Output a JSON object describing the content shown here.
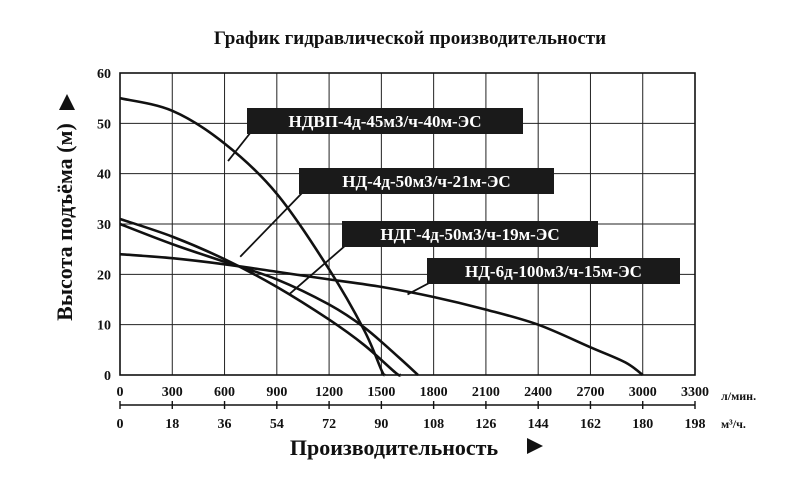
{
  "chart_data": {
    "type": "line",
    "title": "График гидравлической производительности",
    "xlabel": "Производительность",
    "ylabel": "Высота подъёма (м)",
    "x_unit": "л/мин.",
    "x2_unit": "м³/ч.",
    "xlim": [
      0,
      3300
    ],
    "ylim": [
      0,
      60
    ],
    "x_ticks": [
      0,
      300,
      600,
      900,
      1200,
      1500,
      1800,
      2100,
      2400,
      2700,
      3000,
      3300
    ],
    "x2_ticks": [
      0,
      18,
      36,
      54,
      72,
      90,
      108,
      126,
      144,
      162,
      180,
      198
    ],
    "y_ticks": [
      0,
      10,
      20,
      30,
      40,
      50,
      60
    ],
    "grid": true,
    "series": [
      {
        "name": "НДВП-4д-45м3/ч-40м-ЭС",
        "x": [
          0,
          300,
          600,
          900,
          1200,
          1400,
          1500,
          1520
        ],
        "y": [
          55,
          52.5,
          46,
          36,
          21,
          9,
          1,
          0
        ],
        "label_anchor_x": 620,
        "label_anchor_y": 42.5
      },
      {
        "name": "НД-4д-50м3/ч-21м-ЭС",
        "x": [
          0,
          300,
          600,
          900,
          1200,
          1400,
          1580,
          1610
        ],
        "y": [
          31,
          27.5,
          23,
          17.5,
          11,
          6,
          0.5,
          0
        ],
        "label_anchor_x": 690,
        "label_anchor_y": 23.5
      },
      {
        "name": "НДГ-4д-50м3/ч-19м-ЭС",
        "x": [
          0,
          300,
          600,
          900,
          1200,
          1400,
          1600,
          1710
        ],
        "y": [
          30,
          26,
          22.5,
          19,
          14,
          9.5,
          3.5,
          0
        ],
        "label_anchor_x": 970,
        "label_anchor_y": 16
      },
      {
        "name": "НД-6д-100м3/ч-15м-ЭС",
        "x": [
          0,
          300,
          600,
          900,
          1200,
          1500,
          1800,
          2100,
          2400,
          2700,
          2900,
          3000
        ],
        "y": [
          24,
          23.2,
          22,
          20.5,
          19,
          17.5,
          15.5,
          13,
          10,
          5.5,
          2.5,
          0
        ],
        "label_anchor_x": 1650,
        "label_anchor_y": 16
      }
    ]
  }
}
